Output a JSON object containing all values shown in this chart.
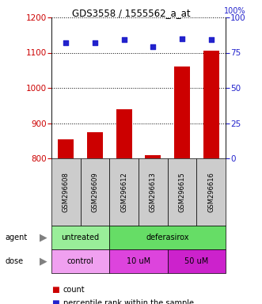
{
  "title": "GDS3558 / 1555562_a_at",
  "samples": [
    "GSM296608",
    "GSM296609",
    "GSM296612",
    "GSM296613",
    "GSM296615",
    "GSM296616"
  ],
  "counts": [
    855,
    875,
    940,
    810,
    1060,
    1105
  ],
  "percentile_ranks": [
    82,
    82,
    84,
    79,
    85,
    84
  ],
  "ylim_left": [
    800,
    1200
  ],
  "ylim_right": [
    0,
    100
  ],
  "bar_color": "#cc0000",
  "dot_color": "#2222cc",
  "agent_groups": [
    {
      "label": "untreated",
      "start": 0,
      "end": 2,
      "color": "#99ee99"
    },
    {
      "label": "deferasirox",
      "start": 2,
      "end": 6,
      "color": "#66dd66"
    }
  ],
  "dose_groups": [
    {
      "label": "control",
      "start": 0,
      "end": 2,
      "color": "#f0a0f0"
    },
    {
      "label": "10 uM",
      "start": 2,
      "end": 4,
      "color": "#dd44dd"
    },
    {
      "label": "50 uM",
      "start": 4,
      "end": 6,
      "color": "#cc22cc"
    }
  ],
  "legend_count_color": "#cc0000",
  "legend_dot_color": "#2222cc",
  "yticks_left": [
    800,
    900,
    1000,
    1100,
    1200
  ],
  "yticks_right": [
    0,
    25,
    50,
    75,
    100
  ],
  "grid_color": "#000000",
  "sample_box_color": "#cccccc",
  "fig_width": 3.31,
  "fig_height": 3.84,
  "dpi": 100
}
